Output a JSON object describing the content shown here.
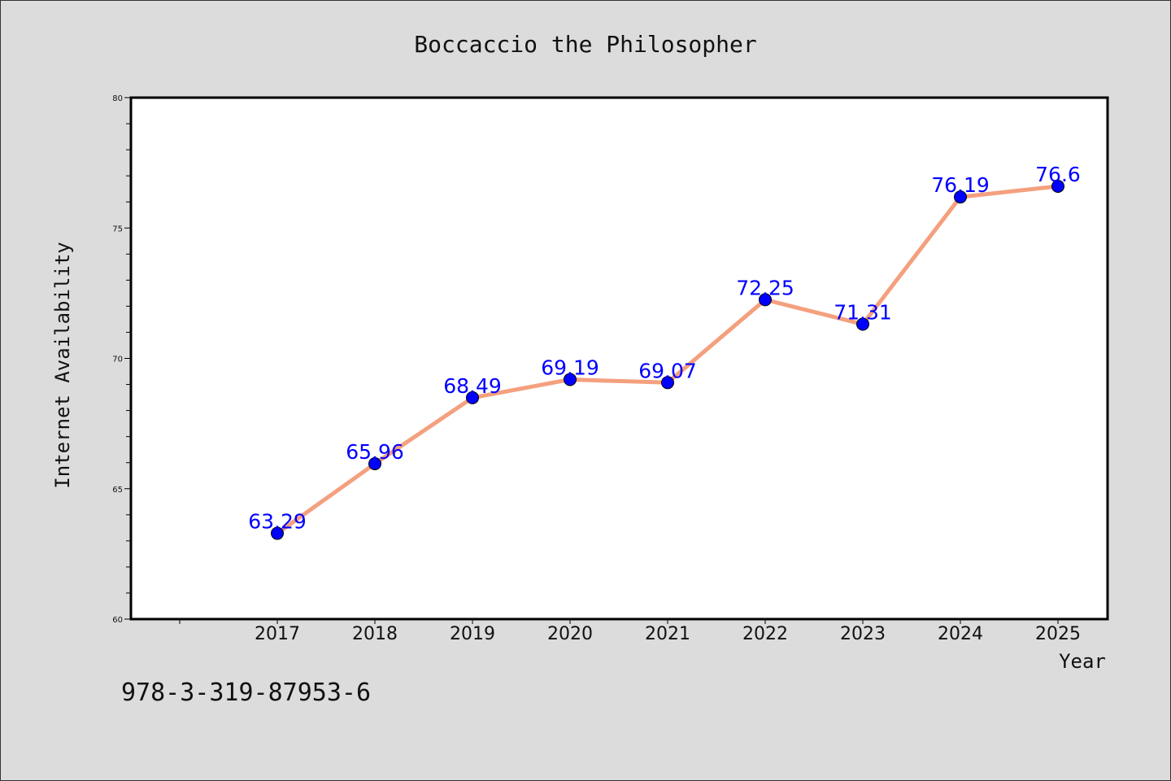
{
  "chart_data": {
    "type": "line",
    "title": "Boccaccio the Philosopher",
    "xlabel": "Year",
    "ylabel": "Internet Availability",
    "categories": [
      "2017",
      "2018",
      "2019",
      "2020",
      "2021",
      "2022",
      "2023",
      "2024",
      "2025"
    ],
    "values": [
      63.29,
      65.96,
      68.49,
      69.19,
      69.07,
      72.25,
      71.31,
      76.19,
      76.6
    ],
    "data_labels": [
      "63.29",
      "65.96",
      "68.49",
      "69.19",
      "69.07",
      "72.25",
      "71.31",
      "76.19",
      "76.6"
    ],
    "ylim": [
      60,
      80
    ],
    "yticks": [
      "60",
      "65",
      "70",
      "75",
      "80"
    ],
    "grid": false,
    "line_color": "#f4a07e",
    "marker_color": "#0000ff",
    "label_color": "#0000ff"
  },
  "footer": {
    "isbn": "978-3-319-87953-6"
  }
}
